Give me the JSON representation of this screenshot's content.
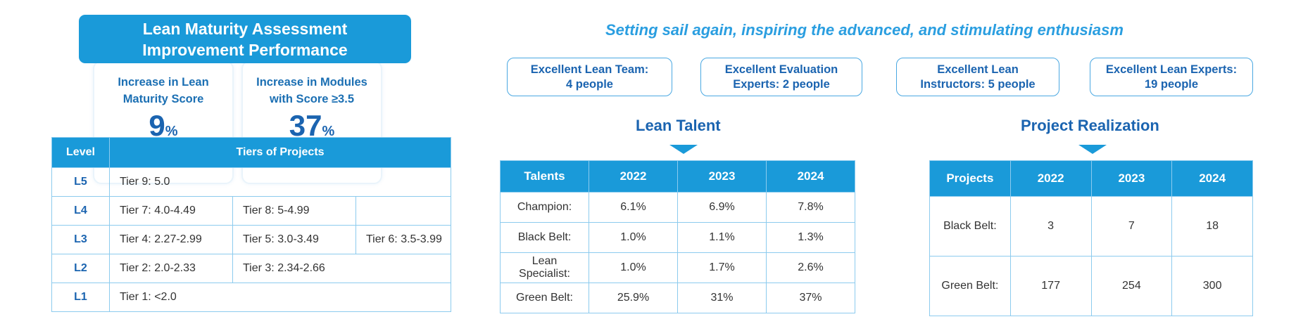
{
  "left": {
    "header_line1": "Lean Maturity Assessment",
    "header_line2": "Improvement Performance",
    "card1": {
      "label_line1": "Increase in Lean",
      "label_line2": "Maturity Score",
      "value": "9",
      "unit": "%"
    },
    "card2": {
      "label_line1": "Increase in Modules",
      "label_line2": "with Score ≥3.5",
      "value": "37",
      "unit": "%"
    },
    "table": {
      "headers": [
        "Level",
        "Tiers of Projects"
      ],
      "rows": [
        {
          "level": "L5",
          "tiers": [
            "Tier 9: 5.0"
          ]
        },
        {
          "level": "L4",
          "tiers": [
            "Tier 7: 4.0-4.49",
            "Tier 8: 5-4.99",
            ""
          ]
        },
        {
          "level": "L3",
          "tiers": [
            "Tier 4: 2.27-2.99",
            "Tier 5: 3.0-3.49",
            "Tier 6: 3.5-3.99"
          ]
        },
        {
          "level": "L2",
          "tiers": [
            "Tier 2: 2.0-2.33",
            "Tier 3: 2.34-2.66"
          ]
        },
        {
          "level": "L1",
          "tiers": [
            "Tier 1: <2.0"
          ]
        }
      ]
    }
  },
  "right": {
    "slogan": "Setting sail again, inspiring the advanced, and stimulating enthusiasm",
    "awards": [
      {
        "line1": "Excellent Lean Team:",
        "line2": "4 people"
      },
      {
        "line1": "Excellent Evaluation",
        "line2": "Experts: 2 people"
      },
      {
        "line1": "Excellent Lean",
        "line2": "Instructors: 5 people"
      },
      {
        "line1": "Excellent Lean Experts:",
        "line2": "19 people"
      }
    ],
    "talent": {
      "title": "Lean Talent",
      "headers": [
        "Talents",
        "2022",
        "2023",
        "2024"
      ],
      "rows": [
        [
          "Champion:",
          "6.1%",
          "6.9%",
          "7.8%"
        ],
        [
          "Black Belt:",
          "1.0%",
          "1.1%",
          "1.3%"
        ],
        [
          "Lean Specialist:",
          "1.0%",
          "1.7%",
          "2.6%"
        ],
        [
          "Green Belt:",
          "25.9%",
          "31%",
          "37%"
        ]
      ]
    },
    "project": {
      "title": "Project Realization",
      "headers": [
        "Projects",
        "2022",
        "2023",
        "2024"
      ],
      "rows": [
        [
          "Black Belt:",
          "3",
          "7",
          "18"
        ],
        [
          "Green Belt:",
          "177",
          "254",
          "300"
        ]
      ]
    }
  },
  "colors": {
    "accent": "#1a9ad9",
    "text_blue": "#1b64b0",
    "slogan": "#2a9ee0"
  }
}
